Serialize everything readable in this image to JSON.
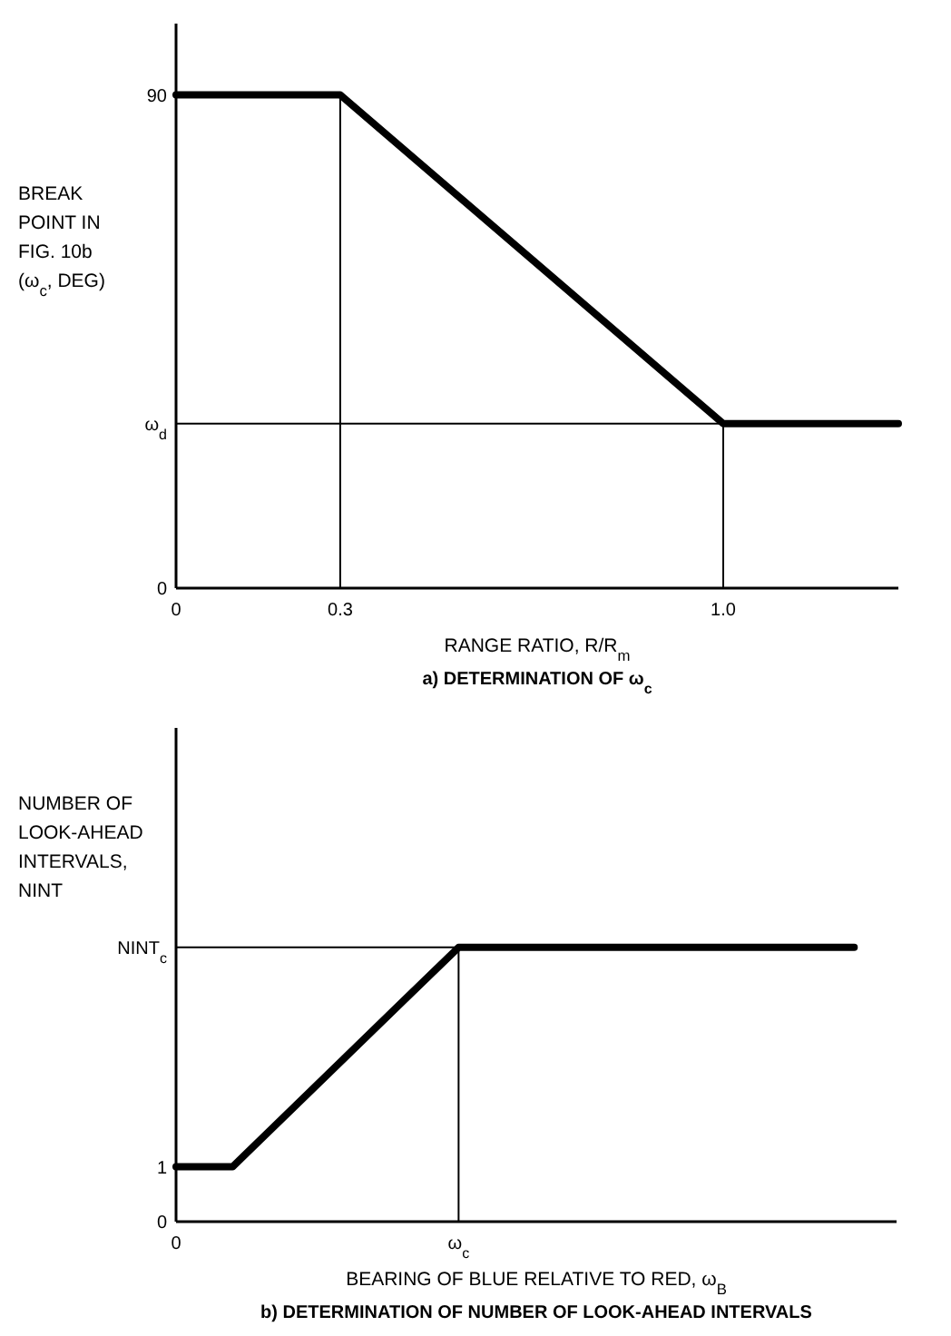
{
  "chart_data": [
    {
      "type": "line",
      "title": "a) DETERMINATION OF ω$_{c}$",
      "xlabel": "RANGE RATIO, R/R$_{m}$",
      "ylabel": "BREAK POINT IN FIG. 10b (ω$_{c}$, DEG)",
      "marker": "none",
      "line_style": "solid",
      "xlim": [
        0,
        1.32
      ],
      "ylim": [
        0,
        103
      ],
      "xticks": [
        0,
        0.3,
        {
          "value": 1,
          "label": "1.0"
        }
      ],
      "yticks": [
        0,
        {
          "value": 30,
          "label": "ω$_{d}$"
        },
        90
      ],
      "series": [
        {
          "color": "#000000",
          "x": [
            0,
            0.3,
            1,
            1.32
          ],
          "values": [
            90,
            90,
            30,
            30
          ]
        }
      ],
      "ref_lines": [
        {
          "axis": "x",
          "value": 0.3
        },
        {
          "axis": "x",
          "value": 1
        },
        {
          "axis": "y",
          "value": 30
        }
      ]
    },
    {
      "type": "line",
      "title": "b) DETERMINATION OF NUMBER OF LOOK-AHEAD INTERVALS",
      "xlabel": "BEARING OF BLUE RELATIVE TO RED, ω$_{B}$",
      "ylabel": "NUMBER OF LOOK-AHEAD INTERVALS, NINT",
      "marker": "none",
      "line_style": "solid",
      "categories": [
        "0",
        null,
        null,
        null,
        null,
        "ω$_{c}$",
        null,
        null,
        null,
        null,
        null,
        null,
        null
      ],
      "ylim": [
        0,
        9
      ],
      "yticks": [
        0,
        1,
        {
          "value": 5,
          "label": "NINT$_{c}$"
        }
      ],
      "series": [
        {
          "color": "#000000",
          "values": [
            1,
            1,
            2,
            3,
            4,
            5,
            5,
            5,
            5,
            5,
            5,
            5,
            5
          ]
        }
      ],
      "ref_lines": [
        {
          "axis": "y",
          "value": 5
        },
        {
          "axis": "x",
          "value": "ω$_{c}$"
        }
      ]
    }
  ]
}
